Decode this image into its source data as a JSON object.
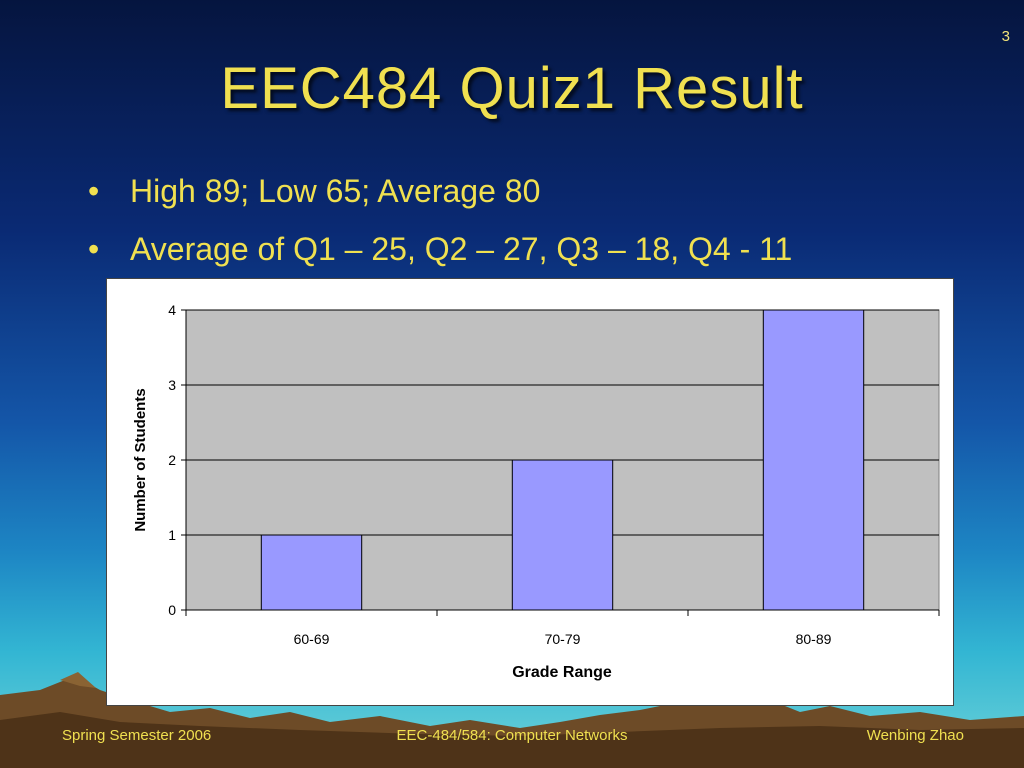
{
  "slide": {
    "number": "3",
    "title": "EEC484 Quiz1 Result",
    "bullets": [
      "High 89; Low 65; Average 80",
      "Average of Q1 – 25, Q2 – 27, Q3 – 18, Q4 - 11"
    ],
    "bullet_glyph": "•"
  },
  "footer": {
    "left": "Spring Semester 2006",
    "center": "EEC-484/584: Computer Networks",
    "right": "Wenbing Zhao"
  },
  "colors": {
    "title": "#f0e050",
    "bar_fill": "#9999ff",
    "plot_background": "#c0c0c0"
  },
  "chart_data": {
    "type": "bar",
    "title": "",
    "xlabel": "Grade Range",
    "ylabel": "Number of Students",
    "categories": [
      "60-69",
      "70-79",
      "80-89"
    ],
    "values": [
      1,
      2,
      4
    ],
    "ylim": [
      0,
      4
    ],
    "yticks": [
      0,
      1,
      2,
      3,
      4
    ],
    "grid": true,
    "legend": "none"
  }
}
